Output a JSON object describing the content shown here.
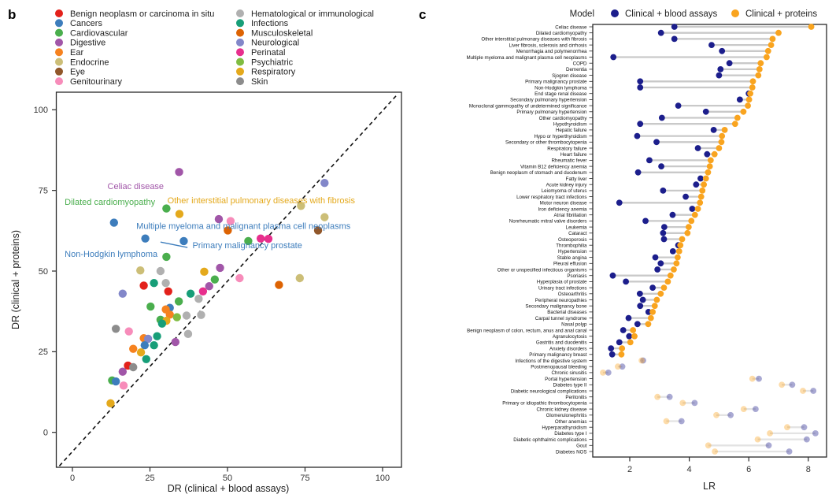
{
  "palette": {
    "benign": "#e3211b",
    "cancers": "#3d7dbc",
    "cardio": "#4aae4d",
    "digestive": "#a156a8",
    "ear": "#f6821f",
    "endocrine": "#ccbe77",
    "eye": "#91572a",
    "genito": "#f78cba",
    "hema": "#b0b0b0",
    "infect": "#179e78",
    "musculo": "#dd6303",
    "neuro": "#8287c9",
    "perinatal": "#e72f8d",
    "psych": "#7fbc41",
    "resp": "#e4a91c",
    "skin": "#8c8c8c"
  },
  "chart_data": [
    {
      "type": "scatter",
      "panel_label": "b",
      "xlabel": "DR (clinical + blood assays)",
      "ylabel": "DR (clinical + proteins)",
      "xticks": [
        0,
        25,
        50,
        75,
        100
      ],
      "yticks": [
        0,
        25,
        50,
        75,
        100
      ],
      "xlim": [
        -5,
        106
      ],
      "ylim": [
        -11,
        106
      ],
      "identity_line": true,
      "legend": {
        "col1": [
          {
            "label": "Benign neoplasm or carcinoma in situ",
            "category": "benign"
          },
          {
            "label": "Cancers",
            "category": "cancers"
          },
          {
            "label": "Cardiovascular",
            "category": "cardio"
          },
          {
            "label": "Digestive",
            "category": "digestive"
          },
          {
            "label": "Ear",
            "category": "ear"
          },
          {
            "label": "Endocrine",
            "category": "endocrine"
          },
          {
            "label": "Eye",
            "category": "eye"
          },
          {
            "label": "Genitourinary",
            "category": "genito"
          }
        ],
        "col2": [
          {
            "label": "Hematological or immunological",
            "category": "hema"
          },
          {
            "label": "Infections",
            "category": "infect"
          },
          {
            "label": "Musculoskeletal",
            "category": "musculo"
          },
          {
            "label": "Neurological",
            "category": "neuro"
          },
          {
            "label": "Perinatal",
            "category": "perinatal"
          },
          {
            "label": "Psychiatric",
            "category": "psych"
          },
          {
            "label": "Respiratory",
            "category": "resp"
          },
          {
            "label": "Skin",
            "category": "skin"
          }
        ]
      },
      "points": [
        [
          34.4,
          80.7,
          "digestive"
        ],
        [
          81.3,
          77.3,
          "neuro"
        ],
        [
          30.3,
          69.4,
          "cardio"
        ],
        [
          34.5,
          67.7,
          "resp"
        ],
        [
          73.7,
          70.2,
          "endocrine"
        ],
        [
          81.3,
          66.7,
          "endocrine"
        ],
        [
          13.4,
          65.0,
          "cancers"
        ],
        [
          47.2,
          66.1,
          "digestive"
        ],
        [
          51.0,
          65.5,
          "genito"
        ],
        [
          50.1,
          62.6,
          "musculo"
        ],
        [
          79.2,
          62.6,
          "eye"
        ],
        [
          23.5,
          60.1,
          "cancers"
        ],
        [
          35.9,
          59.3,
          "cancers"
        ],
        [
          30.3,
          54.4,
          "cardio"
        ],
        [
          60.7,
          60.1,
          "perinatal"
        ],
        [
          63.2,
          60.0,
          "perinatal"
        ],
        [
          56.7,
          59.3,
          "cardio"
        ],
        [
          47.6,
          51.0,
          "digestive"
        ],
        [
          21.9,
          50.2,
          "endocrine"
        ],
        [
          28.4,
          50.0,
          "hema"
        ],
        [
          42.5,
          49.8,
          "resp"
        ],
        [
          53.9,
          47.8,
          "genito"
        ],
        [
          73.3,
          47.8,
          "endocrine"
        ],
        [
          23.0,
          45.5,
          "benign"
        ],
        [
          26.3,
          46.3,
          "infect"
        ],
        [
          30.1,
          46.3,
          "hema"
        ],
        [
          45.9,
          47.4,
          "cardio"
        ],
        [
          66.6,
          45.7,
          "musculo"
        ],
        [
          30.9,
          43.7,
          "benign"
        ],
        [
          16.2,
          43.0,
          "neuro"
        ],
        [
          38.1,
          43.0,
          "infect"
        ],
        [
          42.1,
          43.7,
          "perinatal"
        ],
        [
          44.1,
          45.3,
          "digestive"
        ],
        [
          40.7,
          41.4,
          "hema"
        ],
        [
          34.3,
          40.6,
          "cardio"
        ],
        [
          25.2,
          39.0,
          "cardio"
        ],
        [
          31.4,
          38.6,
          "cancers"
        ],
        [
          30.1,
          38.1,
          "ear"
        ],
        [
          31.4,
          36.5,
          "ear"
        ],
        [
          28.4,
          34.9,
          "cardio"
        ],
        [
          30.3,
          34.6,
          "resp"
        ],
        [
          28.9,
          33.7,
          "infect"
        ],
        [
          33.7,
          35.7,
          "psych"
        ],
        [
          36.8,
          36.2,
          "hema"
        ],
        [
          41.5,
          36.4,
          "hema"
        ],
        [
          14.0,
          32.1,
          "skin"
        ],
        [
          18.2,
          31.3,
          "genito"
        ],
        [
          37.3,
          30.5,
          "hema"
        ],
        [
          23.0,
          29.2,
          "ear"
        ],
        [
          24.4,
          29.0,
          "neuro"
        ],
        [
          27.3,
          29.8,
          "infect"
        ],
        [
          23.3,
          27.0,
          "cancers"
        ],
        [
          26.3,
          27.0,
          "infect"
        ],
        [
          33.2,
          28.0,
          "digestive"
        ],
        [
          19.6,
          25.9,
          "ear"
        ],
        [
          22.1,
          24.8,
          "resp"
        ],
        [
          23.8,
          22.7,
          "infect"
        ],
        [
          17.9,
          20.7,
          "benign"
        ],
        [
          19.6,
          20.2,
          "skin"
        ],
        [
          16.2,
          18.8,
          "digestive"
        ],
        [
          12.8,
          16.1,
          "cardio"
        ],
        [
          14.0,
          15.8,
          "cancers"
        ],
        [
          16.5,
          14.5,
          "genito"
        ],
        [
          12.3,
          9.0,
          "resp"
        ]
      ],
      "annotations": [
        {
          "text": "Celiac disease",
          "category": "digestive",
          "x": 11.3,
          "y": 75.4
        },
        {
          "text": "Dilated cardiomyopathy",
          "category": "cardio",
          "x": -2.5,
          "y": 70.5
        },
        {
          "text": "Other interstitial pulmonary diseases with fibrosis",
          "category": "resp",
          "x": 30.6,
          "y": 71.0
        },
        {
          "text": "Multiple myeloma and malignant plasma cell neoplasms",
          "category": "cancers",
          "x": 20.6,
          "y": 63.1
        },
        {
          "text": "Primary malignancy prostate",
          "category": "cancers",
          "x": 38.7,
          "y": 57.1
        },
        {
          "text": "Non-Hodgkin lymphoma",
          "category": "cancers",
          "x": -2.5,
          "y": 54.4
        }
      ],
      "leader_line": {
        "x1": 28.4,
        "y1": 59.0,
        "x2": 37.1,
        "y2": 57.3,
        "category": "cancers"
      }
    },
    {
      "type": "dumbbell",
      "panel_label": "c",
      "xlabel": "LR",
      "xticks": [
        2,
        4,
        6,
        8
      ],
      "xlim": [
        0.75,
        8.6
      ],
      "legend": {
        "title": "Model",
        "series": [
          {
            "name": "Clinical + blood assays",
            "color": "#1c1e8c"
          },
          {
            "name": "Clinical + proteins",
            "color": "#f9a41f"
          }
        ]
      },
      "connector_color": "#c9c9c9",
      "faded_opacity": 0.38,
      "rows": [
        [
          "Celiac disease",
          3.5,
          8.1,
          0
        ],
        [
          "Dilated cardiomyopathy",
          3.05,
          7.0,
          0
        ],
        [
          "Other interstitial pulmonary diseases with fibrosis",
          3.5,
          6.8,
          0
        ],
        [
          "Liver fibrosis, sclerosis and cirrhosis",
          4.75,
          6.75,
          0
        ],
        [
          "Menorrhagia and polymenorrhea",
          5.1,
          6.65,
          0
        ],
        [
          "Multiple myeloma and malignant plasma cell neoplasms",
          1.45,
          6.6,
          0
        ],
        [
          "COPD",
          5.35,
          6.4,
          0
        ],
        [
          "Dementia",
          5.05,
          6.36,
          0
        ],
        [
          "Sjogren disease",
          5.0,
          6.32,
          0
        ],
        [
          "Primary malignancy prostate",
          2.35,
          6.14,
          0
        ],
        [
          "Non-Hodgkin lymphoma",
          2.35,
          6.12,
          0
        ],
        [
          "End stage renal disease",
          6.0,
          6.05,
          0
        ],
        [
          "Secondary pulmonary hypertension",
          5.7,
          6.01,
          0
        ],
        [
          "Monoclonal gammopathy of undetermined significance",
          3.63,
          5.97,
          0
        ],
        [
          "Primary pulmonary hypertension",
          4.56,
          5.82,
          0
        ],
        [
          "Other cardiomyopathy",
          3.08,
          5.62,
          0
        ],
        [
          "Hypothyroidism",
          2.35,
          5.54,
          0
        ],
        [
          "Hepatic failure",
          4.82,
          5.19,
          0
        ],
        [
          "Hypo or hyperthyroidism",
          2.25,
          5.1,
          0
        ],
        [
          "Secondary or other thrombocytopenia",
          2.9,
          5.08,
          0
        ],
        [
          "Respiratory failure",
          4.29,
          5.0,
          0
        ],
        [
          "Heart failure",
          4.6,
          4.85,
          0
        ],
        [
          "Rheumatic fever",
          2.66,
          4.72,
          0
        ],
        [
          "Vitamin B12 deficiency anemia",
          3.06,
          4.69,
          0
        ],
        [
          "Benign neoplasm of stomach and duodenum",
          2.28,
          4.63,
          0
        ],
        [
          "Fatty liver",
          4.38,
          4.56,
          0
        ],
        [
          "Acute kidney injury",
          4.23,
          4.49,
          0
        ],
        [
          "Leiomyoma of uterus",
          3.12,
          4.44,
          0
        ],
        [
          "Lower respiratory tract infections",
          3.88,
          4.4,
          0
        ],
        [
          "Motor neuron disease",
          1.65,
          4.36,
          0
        ],
        [
          "Iron deficiency anemia",
          4.1,
          4.29,
          0
        ],
        [
          "Atrial fibrillation",
          3.44,
          4.19,
          0
        ],
        [
          "Nonrheumatic mitral valve disorders",
          2.53,
          4.07,
          0
        ],
        [
          "Leukemia",
          3.16,
          3.98,
          0
        ],
        [
          "Cataract",
          3.12,
          3.94,
          0
        ],
        [
          "Osteoporosis",
          3.15,
          3.76,
          0
        ],
        [
          "Thrombophilia",
          3.63,
          3.7,
          0
        ],
        [
          "Hypertension",
          3.45,
          3.66,
          0
        ],
        [
          "Stable angina",
          2.86,
          3.61,
          0
        ],
        [
          "Pleural effusion",
          3.04,
          3.57,
          0
        ],
        [
          "Other or unspecified infectious organisms",
          2.93,
          3.48,
          0
        ],
        [
          "Psoriasis",
          1.43,
          3.37,
          0
        ],
        [
          "Hyperplasia of prostate",
          1.87,
          3.28,
          0
        ],
        [
          "Urinary tract infections",
          2.77,
          3.15,
          0
        ],
        [
          "Osteoarthritis",
          2.34,
          3.04,
          0
        ],
        [
          "Peripheral neuropathies",
          2.44,
          2.91,
          0
        ],
        [
          "Secondary malignancy bone",
          2.35,
          2.84,
          0
        ],
        [
          "Bacterial diseases",
          2.63,
          2.77,
          0
        ],
        [
          "Carpal tunnel syndrome",
          1.96,
          2.71,
          0
        ],
        [
          "Nasal polyp",
          2.26,
          2.62,
          0
        ],
        [
          "Benign neoplasm of colon, rectum, anus and anal canal",
          1.78,
          2.11,
          0
        ],
        [
          "Agranulocytosis",
          1.98,
          2.16,
          0
        ],
        [
          "Gastritis and duodenitis",
          1.65,
          2.02,
          0
        ],
        [
          "Anxiety disorders",
          1.37,
          1.74,
          0
        ],
        [
          "Primary malignancy breast",
          1.41,
          1.72,
          0
        ],
        [
          "Infections of the digestive system",
          2.45,
          2.4,
          1
        ],
        [
          "Postmenopausal bleeding",
          1.75,
          1.6,
          1
        ],
        [
          "Chronic sinusitis",
          1.28,
          1.1,
          1
        ],
        [
          "Portal hypertension",
          6.34,
          6.12,
          1
        ],
        [
          "Diabetes type II",
          7.46,
          7.11,
          1
        ],
        [
          "Diabetic neurological complications",
          8.17,
          7.82,
          1
        ],
        [
          "Peritonitis",
          3.34,
          2.93,
          1
        ],
        [
          "Primary or idiopathic thrombocytopenia",
          4.18,
          3.78,
          1
        ],
        [
          "Chronic kidney disease",
          6.23,
          5.83,
          1
        ],
        [
          "Glomerulonephritis",
          5.39,
          4.91,
          1
        ],
        [
          "Other anemias",
          3.74,
          3.23,
          1
        ],
        [
          "Hyperparathyroidism",
          7.86,
          7.29,
          1
        ],
        [
          "Diabetes type I",
          8.24,
          6.71,
          1
        ],
        [
          "Diabetic ophthalmic complications",
          7.95,
          6.3,
          1
        ],
        [
          "Gout",
          6.67,
          4.64,
          1
        ],
        [
          "Diabetes NOS",
          7.36,
          4.86,
          1
        ]
      ]
    }
  ]
}
